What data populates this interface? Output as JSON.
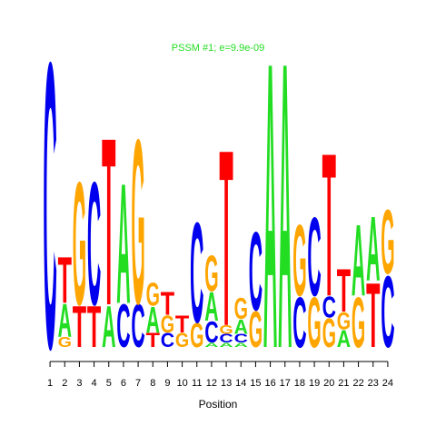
{
  "chart_data": {
    "type": "logo",
    "title": "PSSM #1; e=9.9e-09",
    "xlabel": "Position",
    "title_color": "#22dd22",
    "colors": {
      "A": "#22dd22",
      "C": "#0000ee",
      "G": "#ffa500",
      "T": "#ff0000"
    },
    "x": [
      1,
      2,
      3,
      4,
      5,
      6,
      7,
      8,
      9,
      10,
      11,
      12,
      13,
      14,
      15,
      16,
      17,
      18,
      19,
      20,
      21,
      22,
      23,
      24
    ],
    "xlim": [
      0.5,
      24.5
    ],
    "xticks": [
      1,
      2,
      3,
      4,
      5,
      6,
      7,
      8,
      9,
      10,
      11,
      12,
      13,
      14,
      15,
      16,
      17,
      18,
      19,
      20,
      21,
      22,
      23,
      24
    ],
    "ylim": [
      0,
      2
    ],
    "stacks": [
      [
        {
          "letter": "C",
          "height": 2.0
        }
      ],
      [
        {
          "letter": "G",
          "height": 0.07
        },
        {
          "letter": "A",
          "height": 0.23
        },
        {
          "letter": "T",
          "height": 0.32
        }
      ],
      [
        {
          "letter": "T",
          "height": 0.29
        },
        {
          "letter": "G",
          "height": 0.86
        }
      ],
      [
        {
          "letter": "T",
          "height": 0.29
        },
        {
          "letter": "C",
          "height": 0.86
        }
      ],
      [
        {
          "letter": "A",
          "height": 0.29
        },
        {
          "letter": "T",
          "height": 1.17
        }
      ],
      [
        {
          "letter": "C",
          "height": 0.3
        },
        {
          "letter": "A",
          "height": 0.84
        }
      ],
      [
        {
          "letter": "C",
          "height": 0.3
        },
        {
          "letter": "G",
          "height": 1.15
        }
      ],
      [
        {
          "letter": "T",
          "height": 0.1
        },
        {
          "letter": "A",
          "height": 0.18
        },
        {
          "letter": "G",
          "height": 0.16
        }
      ],
      [
        {
          "letter": "C",
          "height": 0.1
        },
        {
          "letter": "G",
          "height": 0.12
        },
        {
          "letter": "T",
          "height": 0.16
        }
      ],
      [
        {
          "letter": "G",
          "height": 0.1
        },
        {
          "letter": "T",
          "height": 0.12
        }
      ],
      [
        {
          "letter": "G",
          "height": 0.17
        },
        {
          "letter": "C",
          "height": 0.7
        }
      ],
      [
        {
          "letter": "A",
          "height": 0.03
        },
        {
          "letter": "C",
          "height": 0.15
        },
        {
          "letter": "A",
          "height": 0.2
        },
        {
          "letter": "G",
          "height": 0.25
        }
      ],
      [
        {
          "letter": "A",
          "height": 0.03
        },
        {
          "letter": "C",
          "height": 0.06
        },
        {
          "letter": "G",
          "height": 0.06
        },
        {
          "letter": "T",
          "height": 1.23
        }
      ],
      [
        {
          "letter": "A",
          "height": 0.03
        },
        {
          "letter": "C",
          "height": 0.06
        },
        {
          "letter": "A",
          "height": 0.1
        },
        {
          "letter": "G",
          "height": 0.15
        }
      ],
      [
        {
          "letter": "G",
          "height": 0.25
        },
        {
          "letter": "C",
          "height": 0.55
        }
      ],
      [
        {
          "letter": "A",
          "height": 2.0
        }
      ],
      [
        {
          "letter": "A",
          "height": 2.0
        }
      ],
      [
        {
          "letter": "C",
          "height": 0.35
        },
        {
          "letter": "G",
          "height": 0.5
        }
      ],
      [
        {
          "letter": "G",
          "height": 0.35
        },
        {
          "letter": "C",
          "height": 0.55
        }
      ],
      [
        {
          "letter": "G",
          "height": 0.2
        },
        {
          "letter": "C",
          "height": 0.15
        },
        {
          "letter": "T",
          "height": 1.0
        }
      ],
      [
        {
          "letter": "A",
          "height": 0.12
        },
        {
          "letter": "G",
          "height": 0.12
        },
        {
          "letter": "T",
          "height": 0.3
        }
      ],
      [
        {
          "letter": "G",
          "height": 0.35
        },
        {
          "letter": "A",
          "height": 0.5
        }
      ],
      [
        {
          "letter": "T",
          "height": 0.45
        },
        {
          "letter": "A",
          "height": 0.45
        }
      ],
      [
        {
          "letter": "C",
          "height": 0.5
        },
        {
          "letter": "G",
          "height": 0.45
        }
      ]
    ]
  }
}
